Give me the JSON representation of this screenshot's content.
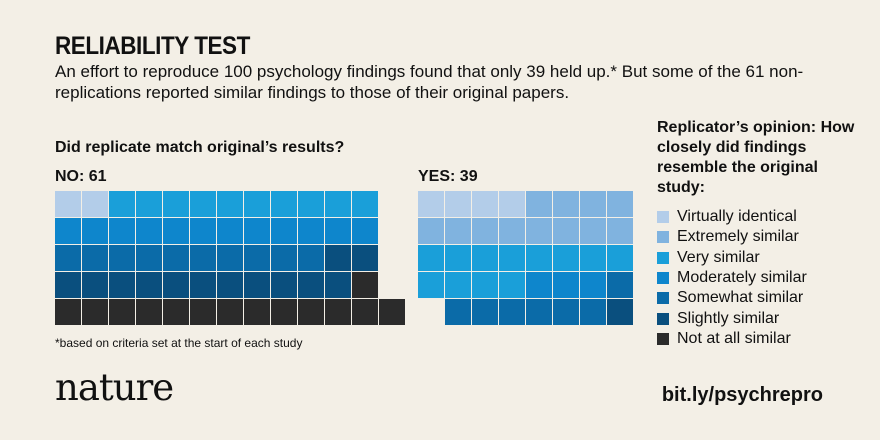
{
  "header": {
    "title": "RELIABILITY TEST",
    "subtitle": "An effort to reproduce 100 psychology findings found that only 39 held up.* But some of the 61 non-replications reported similar findings to those of their original papers."
  },
  "chart_data": {
    "type": "waffle",
    "question": "Did replicate match original’s results?",
    "groups": [
      {
        "label": "NO: 61",
        "total": 61,
        "counts": {
          "Virtually identical": 2,
          "Extremely similar": 0,
          "Very similar": 10,
          "Moderately similar": 12,
          "Somewhat similar": 10,
          "Slightly similar": 13,
          "Not at all similar": 14
        }
      },
      {
        "label": "YES: 39",
        "total": 39,
        "counts": {
          "Virtually identical": 4,
          "Extremely similar": 12,
          "Very similar": 12,
          "Moderately similar": 3,
          "Somewhat similar": 7,
          "Slightly similar": 1,
          "Not at all similar": 0
        }
      }
    ],
    "legend_title": "Replicator’s opinion: How closely did findings resemble the original study:",
    "legend": [
      {
        "name": "Virtually identical",
        "color": "#b3cde9"
      },
      {
        "name": "Extremely similar",
        "color": "#80b3df"
      },
      {
        "name": "Very similar",
        "color": "#1a9fd9"
      },
      {
        "name": "Moderately similar",
        "color": "#0e86cc"
      },
      {
        "name": "Somewhat similar",
        "color": "#0b6ba8"
      },
      {
        "name": "Slightly similar",
        "color": "#0a4f7e"
      },
      {
        "name": "Not at all similar",
        "color": "#2b2b2b"
      }
    ],
    "footnote": "*based on criteria set at the start of each study"
  },
  "footer": {
    "logo": "nature",
    "link": "bit.ly/psychrepro"
  }
}
